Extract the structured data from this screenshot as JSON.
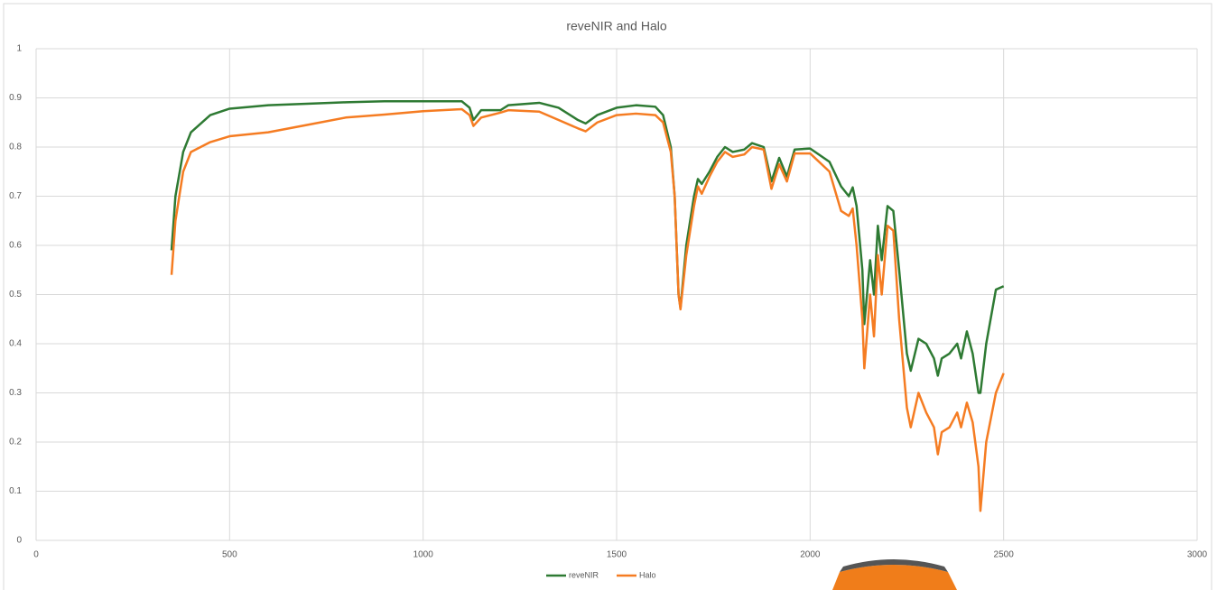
{
  "chart_data": {
    "type": "line",
    "title": "reveNIR and Halo",
    "x": [
      350,
      360,
      380,
      400,
      450,
      500,
      600,
      700,
      800,
      900,
      1000,
      1100,
      1120,
      1130,
      1150,
      1200,
      1220,
      1300,
      1350,
      1400,
      1420,
      1450,
      1500,
      1550,
      1600,
      1620,
      1640,
      1650,
      1660,
      1665,
      1680,
      1700,
      1710,
      1720,
      1740,
      1760,
      1780,
      1800,
      1830,
      1850,
      1880,
      1900,
      1920,
      1940,
      1960,
      2000,
      2050,
      2080,
      2100,
      2110,
      2120,
      2135,
      2140,
      2155,
      2165,
      2175,
      2185,
      2200,
      2215,
      2230,
      2250,
      2260,
      2280,
      2300,
      2320,
      2330,
      2340,
      2360,
      2380,
      2390,
      2405,
      2420,
      2435,
      2440,
      2455,
      2480,
      2500
    ],
    "series": [
      {
        "name": "reveNIR",
        "color": "#2e7a33",
        "values": [
          0.59,
          0.7,
          0.79,
          0.83,
          0.865,
          0.878,
          0.885,
          0.888,
          0.891,
          0.893,
          0.893,
          0.893,
          0.88,
          0.855,
          0.875,
          0.875,
          0.885,
          0.89,
          0.88,
          0.855,
          0.848,
          0.865,
          0.88,
          0.885,
          0.882,
          0.865,
          0.8,
          0.7,
          0.5,
          0.473,
          0.6,
          0.7,
          0.735,
          0.725,
          0.75,
          0.78,
          0.8,
          0.79,
          0.795,
          0.808,
          0.8,
          0.73,
          0.778,
          0.74,
          0.795,
          0.797,
          0.77,
          0.72,
          0.7,
          0.718,
          0.68,
          0.55,
          0.44,
          0.57,
          0.5,
          0.64,
          0.57,
          0.68,
          0.67,
          0.55,
          0.38,
          0.345,
          0.41,
          0.4,
          0.37,
          0.335,
          0.37,
          0.38,
          0.4,
          0.37,
          0.425,
          0.38,
          0.3,
          0.3,
          0.4,
          0.51,
          0.517
        ]
      },
      {
        "name": "Halo",
        "color": "#f57c22",
        "values": [
          0.54,
          0.65,
          0.75,
          0.79,
          0.81,
          0.822,
          0.83,
          0.845,
          0.86,
          0.866,
          0.873,
          0.877,
          0.865,
          0.843,
          0.86,
          0.87,
          0.875,
          0.872,
          0.855,
          0.838,
          0.832,
          0.85,
          0.865,
          0.868,
          0.865,
          0.85,
          0.79,
          0.7,
          0.5,
          0.47,
          0.58,
          0.68,
          0.72,
          0.705,
          0.74,
          0.77,
          0.79,
          0.78,
          0.785,
          0.8,
          0.795,
          0.715,
          0.765,
          0.73,
          0.787,
          0.787,
          0.75,
          0.67,
          0.66,
          0.675,
          0.6,
          0.45,
          0.35,
          0.5,
          0.415,
          0.58,
          0.5,
          0.64,
          0.63,
          0.45,
          0.27,
          0.23,
          0.3,
          0.26,
          0.23,
          0.175,
          0.22,
          0.23,
          0.26,
          0.23,
          0.28,
          0.24,
          0.15,
          0.06,
          0.2,
          0.3,
          0.34
        ]
      }
    ],
    "xlim": [
      0,
      3000
    ],
    "xticks": [
      0,
      500,
      1000,
      1500,
      2000,
      2500,
      3000
    ],
    "ylim": [
      0,
      1
    ],
    "yticks": [
      0,
      0.1,
      0.2,
      0.3,
      0.4,
      0.5,
      0.6,
      0.7,
      0.8,
      0.9,
      1
    ],
    "grid": true,
    "legend": "bottom"
  }
}
